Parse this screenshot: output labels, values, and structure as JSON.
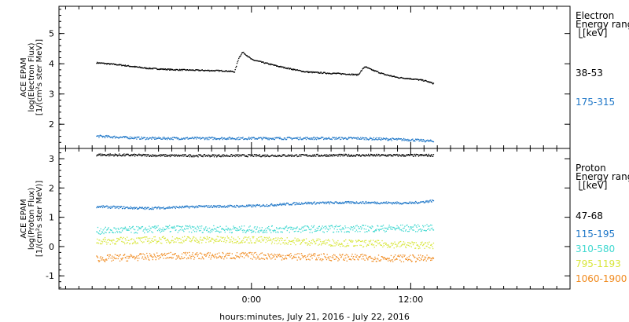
{
  "chart_data": [
    {
      "type": "scatter",
      "panel": "electron",
      "ylabel_lines": [
        "ACE EPAM",
        "log(Electron Flux)",
        "[1/(cm²s ster MeV)]"
      ],
      "ylim": [
        1.2,
        5.9
      ],
      "yticks": [
        2,
        3,
        4,
        5
      ],
      "ytick_labels": [
        "2",
        "3",
        "4",
        "5"
      ],
      "legend_title": [
        "Electron",
        "Energy ranges",
        "[keV]"
      ],
      "series": [
        {
          "name": "38-53",
          "color": "#000000",
          "x": [
            -11.7,
            -10,
            -8,
            -6,
            -4,
            -2,
            -1.3,
            -1,
            -0.7,
            -0.4,
            0,
            2,
            4,
            5,
            6,
            7,
            8,
            8.5,
            9,
            10,
            11,
            12,
            13,
            13.7
          ],
          "y": [
            4.05,
            3.98,
            3.87,
            3.82,
            3.8,
            3.78,
            3.75,
            4.2,
            4.4,
            4.3,
            4.15,
            3.93,
            3.75,
            3.72,
            3.7,
            3.68,
            3.65,
            3.92,
            3.82,
            3.66,
            3.56,
            3.52,
            3.46,
            3.36
          ]
        },
        {
          "name": "175-315",
          "color": "#1f77c8",
          "x": [
            -11.7,
            -8,
            -4,
            0,
            4,
            8,
            12,
            13.7
          ],
          "y": [
            1.62,
            1.55,
            1.55,
            1.55,
            1.55,
            1.55,
            1.5,
            1.45
          ]
        }
      ]
    },
    {
      "type": "scatter",
      "panel": "proton",
      "ylabel_lines": [
        "ACE EPAM",
        "log(Proton Flux)",
        "[1/(cm²s ster MeV)]"
      ],
      "ylim": [
        -1.45,
        3.35
      ],
      "yticks": [
        -1,
        0,
        1,
        2,
        3
      ],
      "ytick_labels": [
        "-1",
        "0",
        "1",
        "2",
        "3"
      ],
      "legend_title": [
        "Proton",
        "Energy ranges",
        "[keV]"
      ],
      "series": [
        {
          "name": "47-68",
          "color": "#000000",
          "x": [
            -11.7,
            -6,
            0,
            6,
            13.7
          ],
          "y": [
            3.15,
            3.12,
            3.12,
            3.13,
            3.13
          ]
        },
        {
          "name": "115-195",
          "color": "#1f77c8",
          "x": [
            -11.7,
            -8,
            -4,
            0,
            4,
            8,
            12,
            13.7
          ],
          "y": [
            1.38,
            1.32,
            1.38,
            1.4,
            1.5,
            1.52,
            1.5,
            1.58
          ]
        },
        {
          "name": "310-580",
          "color": "#3fd8d0",
          "x": [
            -11.7,
            -6,
            0,
            6,
            13.7
          ],
          "y": [
            0.55,
            0.62,
            0.6,
            0.62,
            0.65
          ]
        },
        {
          "name": "795-1193",
          "color": "#d8e63a",
          "x": [
            -11.7,
            -6,
            0,
            6,
            13.7
          ],
          "y": [
            0.2,
            0.25,
            0.25,
            0.15,
            0.05
          ]
        },
        {
          "name": "1060-1900",
          "color": "#f08a1e",
          "x": [
            -11.7,
            -6,
            0,
            6,
            13.7
          ],
          "y": [
            -0.4,
            -0.3,
            -0.3,
            -0.35,
            -0.4
          ]
        }
      ]
    }
  ],
  "xaxis": {
    "range_hours": [
      -14.5,
      24
    ],
    "ticks": [
      0,
      12
    ],
    "tick_labels": [
      "0:00",
      "12:00"
    ],
    "minor_step": 1,
    "label": "hours:minutes, July 21, 2016 - July 22, 2016"
  }
}
